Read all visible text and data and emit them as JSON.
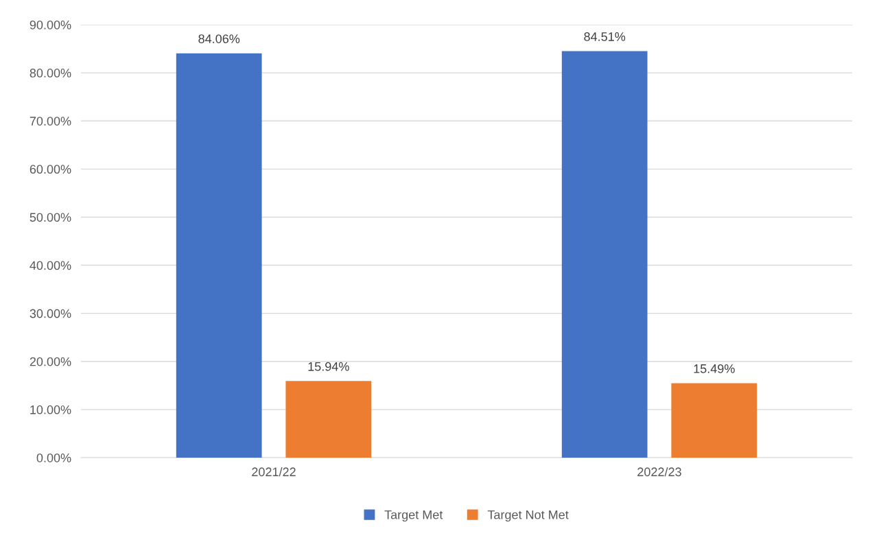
{
  "chart_data": {
    "type": "bar",
    "categories": [
      "2021/22",
      "2022/23"
    ],
    "series": [
      {
        "name": "Target Met",
        "color": "#4472c4",
        "values": [
          84.06,
          84.51
        ],
        "value_labels": [
          "84.06%",
          "84.51%"
        ]
      },
      {
        "name": "Target Not Met",
        "color": "#ed7d31",
        "values": [
          15.94,
          15.49
        ],
        "value_labels": [
          "15.94%",
          "15.49%"
        ]
      }
    ],
    "ylim": [
      0,
      90
    ],
    "yticks": [
      {
        "value": 0,
        "label": "0.00%"
      },
      {
        "value": 10,
        "label": "10.00%"
      },
      {
        "value": 20,
        "label": "20.00%"
      },
      {
        "value": 30,
        "label": "30.00%"
      },
      {
        "value": 40,
        "label": "40.00%"
      },
      {
        "value": 50,
        "label": "50.00%"
      },
      {
        "value": 60,
        "label": "60.00%"
      },
      {
        "value": 70,
        "label": "70.00%"
      },
      {
        "value": 80,
        "label": "80.00%"
      },
      {
        "value": 90,
        "label": "90.00%"
      }
    ],
    "grid": "y",
    "legend": "bottom"
  }
}
